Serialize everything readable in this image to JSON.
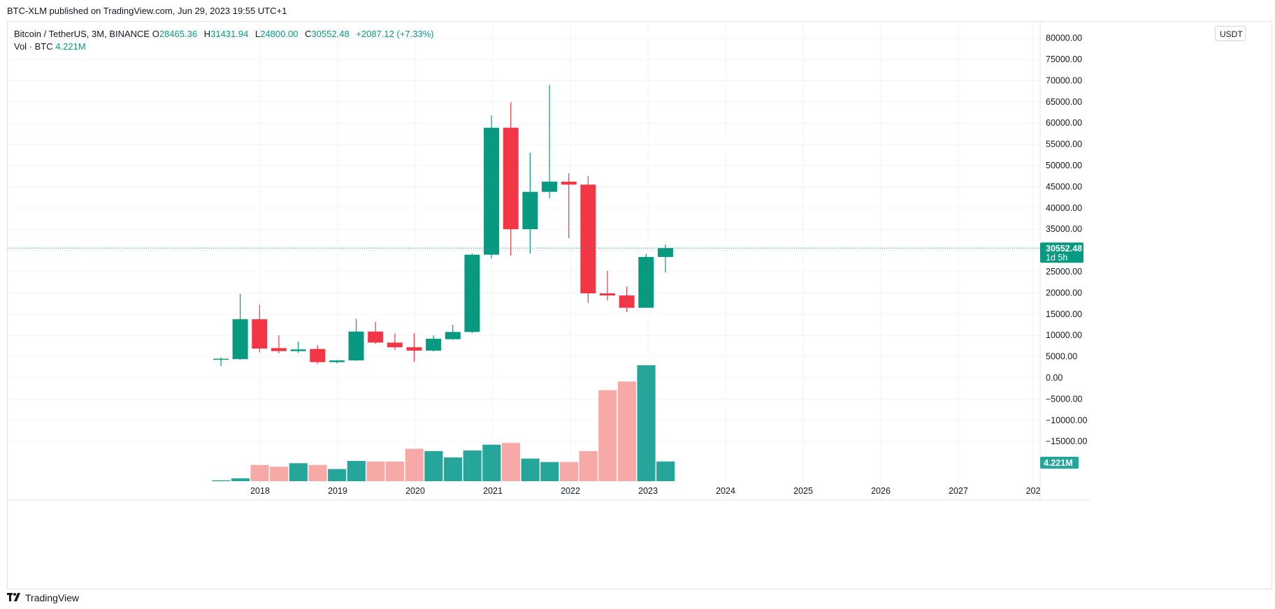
{
  "header": {
    "published_line": "BTC-XLM published on TradingView.com, Jun 29, 2023 19:55 UTC+1"
  },
  "legend": {
    "symbol": "Bitcoin / TetherUS, 3M, BINANCE",
    "o_key": "O",
    "o_val": "28465.36",
    "h_key": "H",
    "h_val": "31431.94",
    "l_key": "L",
    "l_val": "24800.00",
    "c_key": "C",
    "c_val": "30552.48",
    "change": "+2087.12 (+7.33%)",
    "vol_label": "Vol · BTC",
    "vol_value": "4.221M"
  },
  "price_scale": {
    "unit": "USDT",
    "last_price": "30552.48",
    "countdown": "1d 5h",
    "vol_badge": "4.221M"
  },
  "footer": {
    "brand": "TradingView"
  },
  "colors": {
    "up": "#089981",
    "down": "#f23645",
    "vol_up": "#26a69a",
    "vol_down": "#f7a9a7",
    "grid": "#f0f3fa"
  },
  "chart_data": {
    "type": "candlestick",
    "interval": "3M",
    "y_axis": {
      "ticks": [
        -15000,
        -10000,
        -5000,
        0,
        5000,
        10000,
        15000,
        20000,
        25000,
        30000,
        35000,
        40000,
        45000,
        50000,
        55000,
        60000,
        65000,
        70000,
        75000,
        80000
      ],
      "tick_labels": [
        "−15000.00",
        "−10000.00",
        "−5000.00",
        "0.00",
        "5000.00",
        "10000.00",
        "15000.00",
        "20000.00",
        "25000.00",
        "30000.00",
        "35000.00",
        "40000.00",
        "45000.00",
        "50000.00",
        "55000.00",
        "60000.00",
        "65000.00",
        "70000.00",
        "75000.00",
        "80000.00"
      ]
    },
    "x_axis": {
      "tick_labels": [
        "2018",
        "2019",
        "2020",
        "2021",
        "2022",
        "2023",
        "2024",
        "2025",
        "2026",
        "2027",
        "202"
      ]
    },
    "candles": [
      {
        "period": "2017-Q3",
        "o": 4400,
        "h": 4800,
        "l": 2800,
        "c": 4500
      },
      {
        "period": "2017-Q4",
        "o": 4400,
        "h": 19800,
        "l": 4200,
        "c": 13800
      },
      {
        "period": "2018-Q1",
        "o": 13800,
        "h": 17200,
        "l": 6000,
        "c": 6900
      },
      {
        "period": "2018-Q2",
        "o": 7000,
        "h": 10000,
        "l": 5800,
        "c": 6300
      },
      {
        "period": "2018-Q3",
        "o": 6300,
        "h": 8500,
        "l": 5900,
        "c": 6700
      },
      {
        "period": "2018-Q4",
        "o": 6800,
        "h": 7700,
        "l": 3300,
        "c": 3700
      },
      {
        "period": "2019-Q1",
        "o": 3700,
        "h": 4200,
        "l": 3400,
        "c": 4100
      },
      {
        "period": "2019-Q2",
        "o": 4100,
        "h": 13900,
        "l": 4000,
        "c": 10900
      },
      {
        "period": "2019-Q3",
        "o": 10900,
        "h": 13200,
        "l": 8000,
        "c": 8300
      },
      {
        "period": "2019-Q4",
        "o": 8300,
        "h": 10400,
        "l": 6600,
        "c": 7200
      },
      {
        "period": "2020-Q1",
        "o": 7200,
        "h": 10500,
        "l": 3800,
        "c": 6400
      },
      {
        "period": "2020-Q2",
        "o": 6400,
        "h": 10000,
        "l": 6200,
        "c": 9200
      },
      {
        "period": "2020-Q3",
        "o": 9100,
        "h": 12500,
        "l": 8900,
        "c": 10800
      },
      {
        "period": "2020-Q4",
        "o": 10800,
        "h": 29300,
        "l": 10500,
        "c": 29000
      },
      {
        "period": "2021-Q1",
        "o": 29000,
        "h": 61800,
        "l": 28100,
        "c": 58900
      },
      {
        "period": "2021-Q2",
        "o": 58900,
        "h": 64900,
        "l": 28800,
        "c": 35000
      },
      {
        "period": "2021-Q3",
        "o": 35000,
        "h": 53000,
        "l": 29300,
        "c": 43800
      },
      {
        "period": "2021-Q4",
        "o": 43800,
        "h": 69000,
        "l": 42300,
        "c": 46200
      },
      {
        "period": "2022-Q1",
        "o": 46200,
        "h": 48200,
        "l": 32900,
        "c": 45500
      },
      {
        "period": "2022-Q2",
        "o": 45500,
        "h": 47500,
        "l": 17600,
        "c": 19900
      },
      {
        "period": "2022-Q3",
        "o": 19900,
        "h": 25200,
        "l": 18200,
        "c": 19400
      },
      {
        "period": "2022-Q4",
        "o": 19400,
        "h": 21500,
        "l": 15500,
        "c": 16500
      },
      {
        "period": "2023-Q1",
        "o": 16500,
        "h": 29200,
        "l": 16500,
        "c": 28465
      },
      {
        "period": "2023-Q2",
        "o": 28465.36,
        "h": 31431.94,
        "l": 24800,
        "c": 30552.48
      }
    ],
    "volume": {
      "unit": "BTC",
      "last": "4.221M",
      "relative_levels": [
        0.008,
        0.025,
        0.14,
        0.125,
        0.155,
        0.14,
        0.105,
        0.175,
        0.17,
        0.17,
        0.28,
        0.26,
        0.205,
        0.265,
        0.315,
        0.33,
        0.195,
        0.165,
        0.165,
        0.26,
        0.785,
        0.86,
        1.0,
        0.17
      ]
    }
  }
}
